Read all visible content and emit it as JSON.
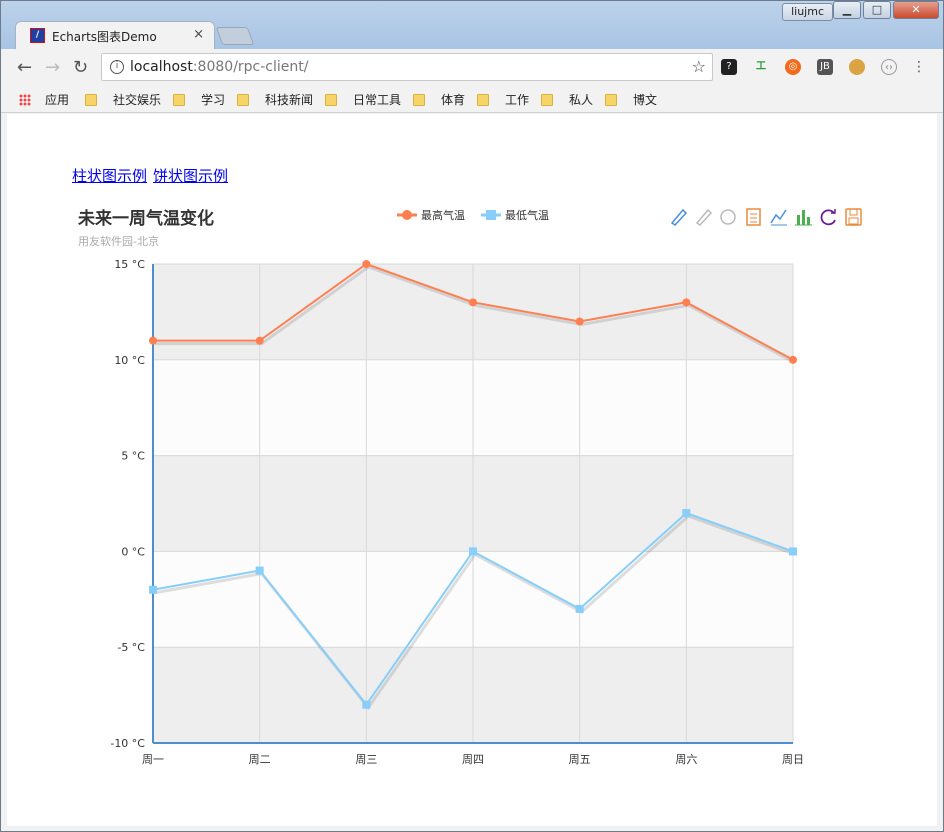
{
  "window": {
    "user": "liujmc",
    "controls": {
      "minimize": "▁",
      "maximize": "□",
      "close": "✕"
    }
  },
  "tab": {
    "title": "Echarts图表Demo",
    "close": "×"
  },
  "toolbar": {
    "url_host": "localhost",
    "url_rest": ":8080/rpc-client/"
  },
  "bookmarks": [
    "应用",
    "社交娱乐",
    "学习",
    "科技新闻",
    "日常工具",
    "体育",
    "工作",
    "私人",
    "博文"
  ],
  "page": {
    "links": [
      "柱状图示例",
      "饼状图示例"
    ]
  },
  "colors": {
    "max": "#ff7f50",
    "min": "#87cefa",
    "axis": "#4f8ec9"
  },
  "toolbox_icons": [
    "mark-icon",
    "mark-undo-icon",
    "mark-clear-icon",
    "data-view-icon",
    "line-type-icon",
    "bar-type-icon",
    "restore-icon",
    "save-image-icon"
  ],
  "chart_data": {
    "type": "line",
    "title": "未来一周气温变化",
    "subtitle": "用友软件园-北京",
    "categories": [
      "周一",
      "周二",
      "周三",
      "周四",
      "周五",
      "周六",
      "周日"
    ],
    "series": [
      {
        "name": "最高气温",
        "values": [
          11,
          11,
          15,
          13,
          12,
          13,
          10
        ],
        "color": "#ff7f50",
        "marker": "circle"
      },
      {
        "name": "最低气温",
        "values": [
          -2,
          -1,
          -8,
          0,
          -3,
          2,
          0
        ],
        "color": "#87cefa",
        "marker": "square"
      }
    ],
    "ylim": [
      -10,
      15
    ],
    "yticks": [
      "15 °C",
      "10 °C",
      "5 °C",
      "0 °C",
      "-5 °C",
      "-10 °C"
    ],
    "ytick_values": [
      15,
      10,
      5,
      0,
      -5,
      -10
    ],
    "grid": true,
    "legend_position": "top-center"
  }
}
